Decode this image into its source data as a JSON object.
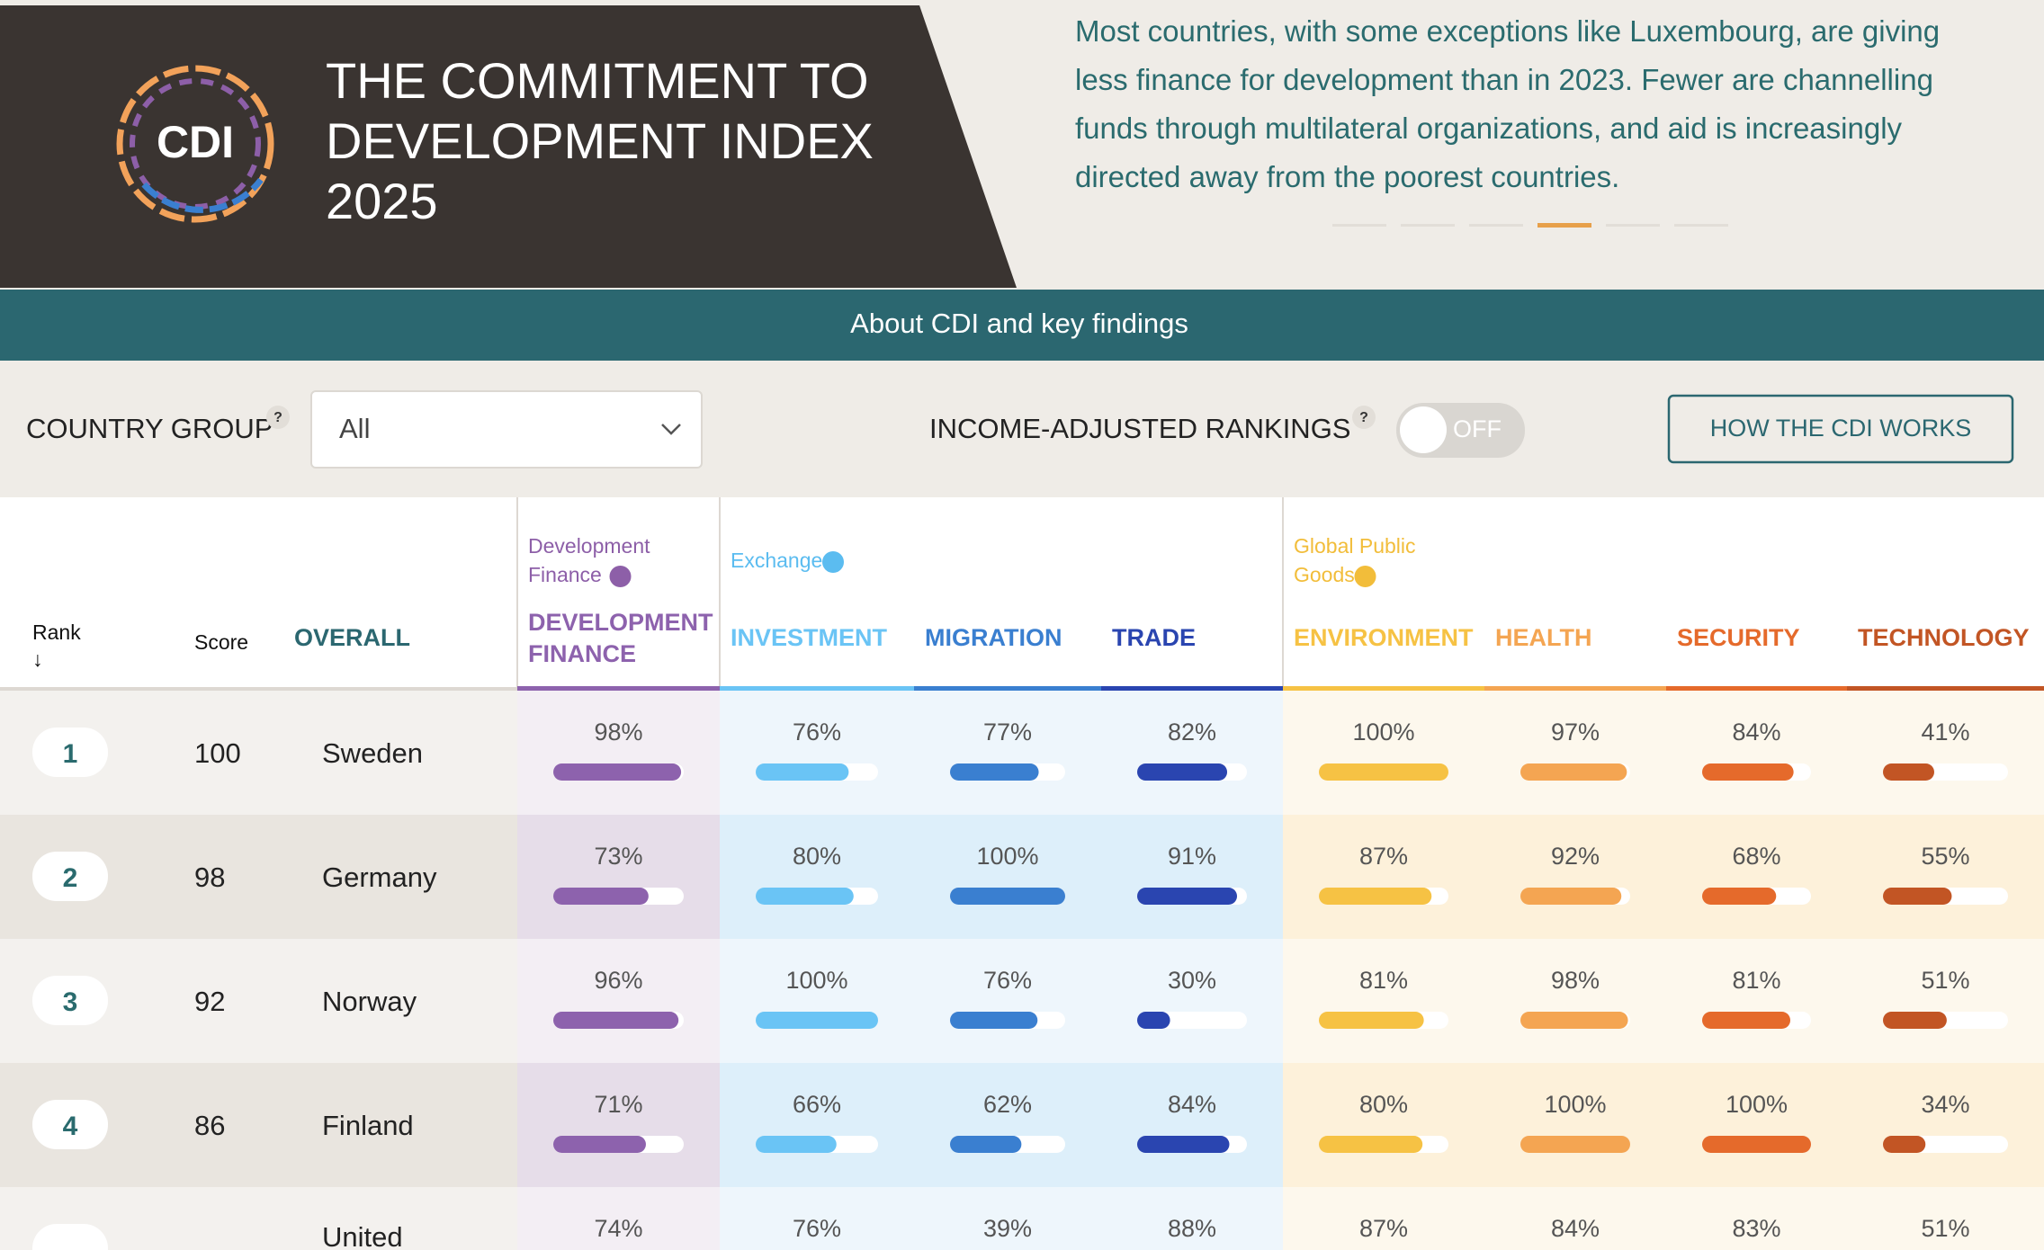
{
  "header": {
    "logo": "CDI",
    "title_lines": [
      "THE COMMITMENT TO",
      "DEVELOPMENT INDEX",
      "2025"
    ],
    "description_lines": [
      "Most countries, with some exceptions like Luxembourg, are giving",
      "less finance for development than in 2023. Fewer are channelling",
      "funds through multilateral organizations, and aid is increasingly",
      "directed away from the poorest countries."
    ],
    "banner": "About CDI and key findings"
  },
  "controls": {
    "country_group_label": "COUNTRY GROUP",
    "help": "?",
    "country_group_value": "All",
    "income_label": "INCOME-ADJUSTED RANKINGS",
    "toggle": "OFF",
    "button": "HOW THE CDI WORKS"
  },
  "table": {
    "rank_header": "Rank",
    "sort_arrow": "↓",
    "score_header": "Score",
    "overall_header": "OVERALL",
    "groups": [
      {
        "name_lines": [
          "Development",
          "Finance"
        ],
        "color": "#8d5fa8"
      },
      {
        "name_lines": [
          "Exchange"
        ],
        "color": "#5bbcf0"
      },
      {
        "name_lines": [
          "Global Public",
          "Goods"
        ],
        "color": "#f2bd3a"
      }
    ],
    "columns": [
      {
        "name_lines": [
          "DEVELOPMENT",
          "FINANCE"
        ],
        "group": 0,
        "color": "#8d62ad"
      },
      {
        "name_lines": [
          "INVESTMENT"
        ],
        "group": 1,
        "color": "#6ac4f5"
      },
      {
        "name_lines": [
          "MIGRATION"
        ],
        "group": 1,
        "color": "#3a7fd0"
      },
      {
        "name_lines": [
          "TRADE"
        ],
        "group": 1,
        "color": "#2a45b0"
      },
      {
        "name_lines": [
          "ENVIRONMENT"
        ],
        "group": 2,
        "color": "#f6c244"
      },
      {
        "name_lines": [
          "HEALTH"
        ],
        "group": 2,
        "color": "#f4a552"
      },
      {
        "name_lines": [
          "SECURITY"
        ],
        "group": 2,
        "color": "#e56a2b"
      },
      {
        "name_lines": [
          "TECHNOLOGY"
        ],
        "group": 2,
        "color": "#c25524"
      }
    ],
    "rows": [
      {
        "rank": 1,
        "score": 100,
        "country": "Sweden",
        "values": [
          98,
          76,
          77,
          82,
          100,
          97,
          84,
          41
        ],
        "value_labels": [
          "98%",
          "76%",
          "77%",
          "82%",
          "100%",
          "97%",
          "84%",
          "41%"
        ]
      },
      {
        "rank": 2,
        "score": 98,
        "country": "Germany",
        "values": [
          73,
          80,
          100,
          91,
          87,
          92,
          68,
          55
        ],
        "value_labels": [
          "73%",
          "80%",
          "100%",
          "91%",
          "87%",
          "92%",
          "68%",
          "55%"
        ]
      },
      {
        "rank": 3,
        "score": 92,
        "country": "Norway",
        "values": [
          96,
          100,
          76,
          30,
          81,
          98,
          81,
          51
        ],
        "value_labels": [
          "96%",
          "100%",
          "76%",
          "30%",
          "81%",
          "98%",
          "81%",
          "51%"
        ]
      },
      {
        "rank": 4,
        "score": 86,
        "country": "Finland",
        "values": [
          71,
          66,
          62,
          84,
          80,
          100,
          100,
          34
        ],
        "value_labels": [
          "71%",
          "66%",
          "62%",
          "84%",
          "80%",
          "100%",
          "100%",
          "34%"
        ]
      },
      {
        "country": "United",
        "values": [
          74,
          76,
          39,
          88,
          87,
          84,
          83,
          51
        ],
        "value_labels": [
          "74%",
          "76%",
          "39%",
          "88%",
          "87%",
          "84%",
          "83%",
          "51%"
        ]
      }
    ]
  }
}
